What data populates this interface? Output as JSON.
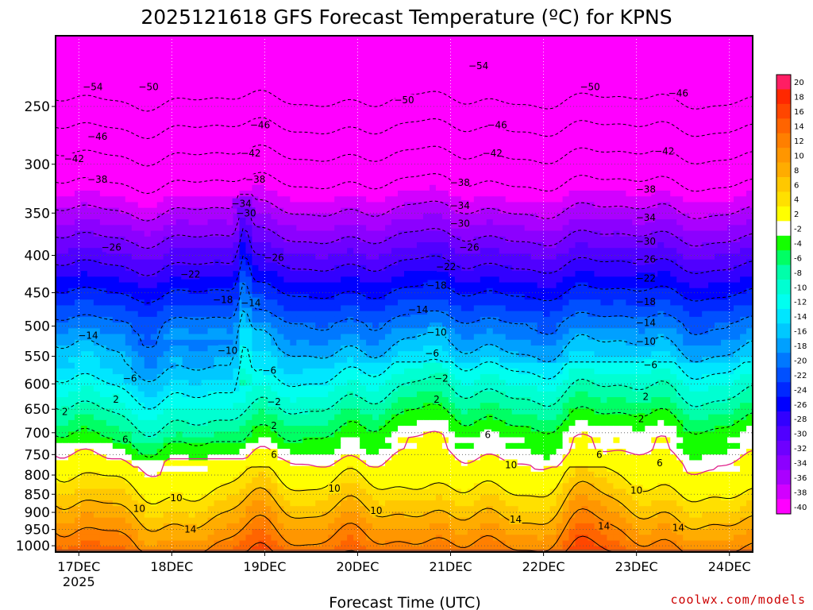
{
  "chart_data": {
    "type": "heatmap",
    "title": "2025121618 GFS Forecast Temperature (ºC) for KPNS",
    "xlabel": "Forecast Time (UTC)",
    "ylabel": "",
    "credit": "coolwx.com/models",
    "x_ticks": [
      "17DEC",
      "18DEC",
      "19DEC",
      "20DEC",
      "21DEC",
      "22DEC",
      "23DEC",
      "24DEC"
    ],
    "x_tick_year": "2025",
    "x_range_days": [
      16.75,
      24.25
    ],
    "y_ticks": [
      250,
      300,
      350,
      400,
      450,
      500,
      550,
      600,
      650,
      700,
      750,
      800,
      850,
      900,
      950,
      1000
    ],
    "y_range_hpa": [
      200,
      1020
    ],
    "y_scale": "log-pressure",
    "grid": true,
    "colorbar": {
      "levels": [
        20,
        18,
        16,
        14,
        12,
        10,
        8,
        6,
        4,
        2,
        -2,
        -4,
        -6,
        -8,
        -10,
        -12,
        -14,
        -16,
        -18,
        -20,
        -22,
        -24,
        -26,
        -28,
        -30,
        -32,
        -34,
        -36,
        -38,
        -40
      ],
      "colors": [
        "#ff1e64",
        "#ff2800",
        "#ff4600",
        "#ff6400",
        "#ff7f00",
        "#ff9600",
        "#ffac00",
        "#ffc800",
        "#ffe000",
        "#ffff00",
        "#ffffff",
        "#14ff00",
        "#00ff64",
        "#00ffaa",
        "#00ffd2",
        "#00fff0",
        "#00e6ff",
        "#00c8ff",
        "#00a0ff",
        "#0078ff",
        "#0050ff",
        "#0028ff",
        "#0000ff",
        "#3200ff",
        "#5000ff",
        "#6e00ff",
        "#8c00ff",
        "#aa00ff",
        "#d200ff",
        "#ff00ff"
      ]
    },
    "isotherm_labels": [
      {
        "t": -54,
        "day": 17.15,
        "p": 235
      },
      {
        "t": -50,
        "day": 17.75,
        "p": 235
      },
      {
        "t": -54,
        "day": 21.3,
        "p": 220
      },
      {
        "t": -50,
        "day": 20.5,
        "p": 245
      },
      {
        "t": -50,
        "day": 22.5,
        "p": 235
      },
      {
        "t": -46,
        "day": 23.45,
        "p": 240
      },
      {
        "t": -46,
        "day": 17.2,
        "p": 275
      },
      {
        "t": -46,
        "day": 18.95,
        "p": 265
      },
      {
        "t": -46,
        "day": 21.5,
        "p": 265
      },
      {
        "t": -42,
        "day": 16.95,
        "p": 295
      },
      {
        "t": -42,
        "day": 18.85,
        "p": 290
      },
      {
        "t": -42,
        "day": 21.45,
        "p": 290
      },
      {
        "t": -42,
        "day": 23.3,
        "p": 288
      },
      {
        "t": -38,
        "day": 17.2,
        "p": 315
      },
      {
        "t": -38,
        "day": 18.9,
        "p": 315
      },
      {
        "t": -38,
        "day": 21.1,
        "p": 318
      },
      {
        "t": -38,
        "day": 23.1,
        "p": 325
      },
      {
        "t": -34,
        "day": 18.75,
        "p": 340
      },
      {
        "t": -34,
        "day": 21.1,
        "p": 342
      },
      {
        "t": -34,
        "day": 23.1,
        "p": 355
      },
      {
        "t": -30,
        "day": 18.8,
        "p": 350
      },
      {
        "t": -30,
        "day": 21.1,
        "p": 362
      },
      {
        "t": -30,
        "day": 23.1,
        "p": 383
      },
      {
        "t": -26,
        "day": 17.35,
        "p": 390
      },
      {
        "t": -26,
        "day": 19.1,
        "p": 403
      },
      {
        "t": -26,
        "day": 21.2,
        "p": 390
      },
      {
        "t": -26,
        "day": 23.1,
        "p": 405
      },
      {
        "t": -22,
        "day": 18.2,
        "p": 425
      },
      {
        "t": -22,
        "day": 20.95,
        "p": 415
      },
      {
        "t": -22,
        "day": 23.1,
        "p": 430
      },
      {
        "t": -18,
        "day": 18.55,
        "p": 460
      },
      {
        "t": -18,
        "day": 20.85,
        "p": 440
      },
      {
        "t": -18,
        "day": 23.1,
        "p": 463
      },
      {
        "t": -14,
        "day": 18.85,
        "p": 465
      },
      {
        "t": -14,
        "day": 20.65,
        "p": 475
      },
      {
        "t": -14,
        "day": 23.1,
        "p": 495
      },
      {
        "t": -14,
        "day": 17.1,
        "p": 515
      },
      {
        "t": -10,
        "day": 18.6,
        "p": 540
      },
      {
        "t": -10,
        "day": 20.85,
        "p": 510
      },
      {
        "t": -10,
        "day": 23.1,
        "p": 525
      },
      {
        "t": -6,
        "day": 17.55,
        "p": 590
      },
      {
        "t": -6,
        "day": 19.05,
        "p": 575
      },
      {
        "t": -6,
        "day": 20.8,
        "p": 545
      },
      {
        "t": -6,
        "day": 23.15,
        "p": 565
      },
      {
        "t": -2,
        "day": 20.9,
        "p": 590
      },
      {
        "t": -2,
        "day": 19.1,
        "p": 635
      },
      {
        "t": 2,
        "day": 17.4,
        "p": 630
      },
      {
        "t": 2,
        "day": 16.85,
        "p": 655
      },
      {
        "t": 2,
        "day": 20.85,
        "p": 630
      },
      {
        "t": 2,
        "day": 19.1,
        "p": 685
      },
      {
        "t": 2,
        "day": 23.1,
        "p": 625
      },
      {
        "t": 2,
        "day": 23.05,
        "p": 670
      },
      {
        "t": 6,
        "day": 17.5,
        "p": 715
      },
      {
        "t": 6,
        "day": 19.1,
        "p": 750
      },
      {
        "t": 6,
        "day": 21.4,
        "p": 705
      },
      {
        "t": 6,
        "day": 22.6,
        "p": 750
      },
      {
        "t": 6,
        "day": 23.25,
        "p": 770
      },
      {
        "t": 10,
        "day": 17.65,
        "p": 890
      },
      {
        "t": 10,
        "day": 18.05,
        "p": 860
      },
      {
        "t": 10,
        "day": 19.75,
        "p": 835
      },
      {
        "t": 10,
        "day": 20.2,
        "p": 895
      },
      {
        "t": 10,
        "day": 21.65,
        "p": 775
      },
      {
        "t": 10,
        "day": 23.0,
        "p": 840
      },
      {
        "t": 14,
        "day": 18.2,
        "p": 950
      },
      {
        "t": 14,
        "day": 21.7,
        "p": 920
      },
      {
        "t": 14,
        "day": 22.65,
        "p": 940
      },
      {
        "t": 14,
        "day": 23.45,
        "p": 945
      }
    ]
  }
}
